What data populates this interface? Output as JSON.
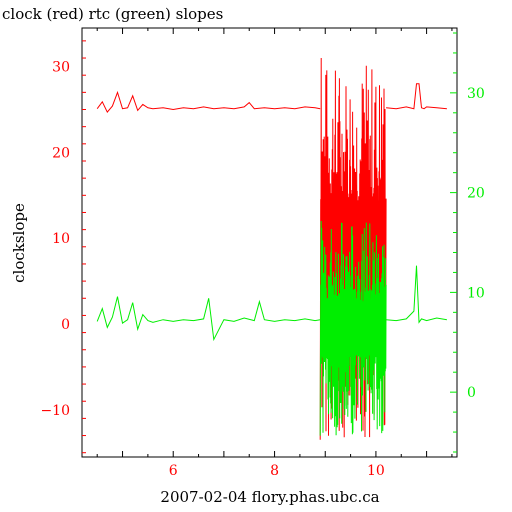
{
  "chart_data": {
    "type": "line",
    "title": "clock (red) rtc (green) slopes",
    "xlabel": "2007-02-04 flory.phas.ubc.ca",
    "ylabel": "clockslope",
    "xlim": [
      4.2,
      11.6
    ],
    "ylim_left": [
      -15.5,
      34.5
    ],
    "ylim_right": [
      -6.5,
      36.5
    ],
    "grid": false,
    "x_ticks": [
      "6",
      "8",
      "10"
    ],
    "left_ticks": [
      "−10",
      "0",
      "10",
      "20",
      "30"
    ],
    "right_ticks": [
      "0",
      "10",
      "20",
      "30"
    ],
    "colors": {
      "red": "#ff0000",
      "green": "#00ee00",
      "axis": "#000000"
    },
    "series": [
      {
        "axis": "left",
        "color": "#ff0000",
        "x": [
          4.5,
          4.6,
          4.7,
          4.8,
          4.9,
          5.0,
          5.1,
          5.2,
          5.3,
          5.4,
          5.5,
          5.6,
          5.8,
          6.0,
          6.2,
          6.4,
          6.6,
          6.8,
          7.0,
          7.2,
          7.4,
          7.5,
          7.6,
          7.8,
          8.0,
          8.2,
          8.4,
          8.6,
          8.8,
          8.9
        ],
        "values": [
          25.1,
          25.9,
          24.7,
          25.4,
          27.0,
          25.1,
          25.2,
          26.6,
          24.9,
          25.6,
          25.2,
          25.1,
          25.2,
          25.0,
          25.2,
          25.1,
          25.3,
          25.1,
          25.2,
          25.1,
          25.3,
          25.8,
          25.1,
          25.2,
          25.1,
          25.2,
          25.1,
          25.3,
          25.2,
          25.1
        ],
        "noisy_segment": {
          "x_range": [
            8.9,
            10.2
          ],
          "y_range": [
            -13.5,
            31.0
          ]
        },
        "tail": {
          "x": [
            10.2,
            10.4,
            10.6,
            10.75,
            10.8,
            10.85,
            10.9,
            10.95,
            11.0,
            11.2,
            11.4
          ],
          "values": [
            25.2,
            25.1,
            25.3,
            25.1,
            28.0,
            28.0,
            25.2,
            25.1,
            25.3,
            25.2,
            25.1
          ]
        }
      },
      {
        "axis": "left",
        "color": "#00ee00",
        "x": [
          4.5,
          4.6,
          4.7,
          4.8,
          4.9,
          5.0,
          5.1,
          5.2,
          5.3,
          5.4,
          5.5,
          5.6,
          5.8,
          6.0,
          6.2,
          6.4,
          6.6,
          6.7,
          6.8,
          7.0,
          7.2,
          7.4,
          7.6,
          7.7,
          7.8,
          8.0,
          8.2,
          8.4,
          8.6,
          8.8,
          8.9
        ],
        "values": [
          0.3,
          1.8,
          -0.4,
          0.8,
          3.2,
          0.1,
          0.5,
          2.5,
          -0.6,
          1.1,
          0.4,
          0.2,
          0.5,
          0.3,
          0.5,
          0.4,
          0.6,
          3.0,
          -1.8,
          0.5,
          0.3,
          0.7,
          0.4,
          2.6,
          0.5,
          0.3,
          0.5,
          0.4,
          0.6,
          0.4,
          0.5
        ],
        "noisy_segment": {
          "x_range": [
            8.9,
            10.2
          ],
          "y_range": [
            -13.0,
            12.0
          ]
        },
        "tail": {
          "x": [
            10.2,
            10.4,
            10.6,
            10.75,
            10.8,
            10.85,
            10.9,
            11.0,
            11.2,
            11.4
          ],
          "values": [
            0.5,
            0.4,
            0.6,
            1.5,
            6.8,
            0.2,
            0.6,
            0.4,
            0.7,
            0.5
          ]
        }
      }
    ]
  }
}
